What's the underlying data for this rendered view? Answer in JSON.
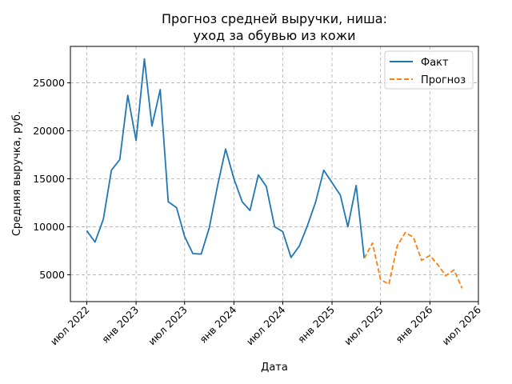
{
  "chart_data": {
    "type": "line",
    "title_lines": [
      "Прогноз средней выручки, ниша:",
      "уход за обувью из кожи"
    ],
    "xlabel": "Дата",
    "ylabel": "Средняя выручка, руб.",
    "x_range": [
      "2022-05-01",
      "2026-07-01"
    ],
    "ylim": [
      2200,
      28800
    ],
    "x_ticks": [
      {
        "date": "2022-07-01",
        "label": "июл 2022"
      },
      {
        "date": "2023-01-01",
        "label": "янв 2023"
      },
      {
        "date": "2023-07-01",
        "label": "июл 2023"
      },
      {
        "date": "2024-01-01",
        "label": "янв 2024"
      },
      {
        "date": "2024-07-01",
        "label": "июл 2024"
      },
      {
        "date": "2025-01-01",
        "label": "янв 2025"
      },
      {
        "date": "2025-07-01",
        "label": "июл 2025"
      },
      {
        "date": "2026-01-01",
        "label": "янв 2026"
      },
      {
        "date": "2026-07-01",
        "label": "июл 2026"
      }
    ],
    "y_ticks": [
      {
        "value": 5000,
        "label": "5000"
      },
      {
        "value": 10000,
        "label": "10000"
      },
      {
        "value": 15000,
        "label": "15000"
      },
      {
        "value": 20000,
        "label": "20000"
      },
      {
        "value": 25000,
        "label": "25000"
      }
    ],
    "grid": true,
    "legend_position": "top-right",
    "series": [
      {
        "name": "Факт",
        "color": "#1f77b4",
        "style": "solid",
        "points": [
          [
            "2022-07-01",
            9600
          ],
          [
            "2022-08-01",
            8400
          ],
          [
            "2022-09-01",
            10800
          ],
          [
            "2022-10-01",
            15900
          ],
          [
            "2022-11-01",
            17000
          ],
          [
            "2022-12-01",
            23700
          ],
          [
            "2023-01-01",
            19000
          ],
          [
            "2023-02-01",
            27500
          ],
          [
            "2023-03-01",
            20500
          ],
          [
            "2023-04-01",
            24300
          ],
          [
            "2023-05-01",
            12600
          ],
          [
            "2023-06-01",
            12000
          ],
          [
            "2023-07-01",
            9000
          ],
          [
            "2023-08-01",
            7200
          ],
          [
            "2023-09-01",
            7150
          ],
          [
            "2023-10-01",
            9900
          ],
          [
            "2023-11-01",
            14300
          ],
          [
            "2023-12-01",
            18100
          ],
          [
            "2024-01-01",
            15000
          ],
          [
            "2024-02-01",
            12600
          ],
          [
            "2024-03-01",
            11700
          ],
          [
            "2024-04-01",
            15400
          ],
          [
            "2024-05-01",
            14200
          ],
          [
            "2024-06-01",
            10000
          ],
          [
            "2024-07-01",
            9500
          ],
          [
            "2024-08-01",
            6800
          ],
          [
            "2024-09-01",
            8000
          ],
          [
            "2024-10-01",
            10100
          ],
          [
            "2024-11-01",
            12600
          ],
          [
            "2024-12-01",
            15900
          ],
          [
            "2025-01-01",
            14600
          ],
          [
            "2025-02-01",
            13300
          ],
          [
            "2025-03-01",
            10000
          ],
          [
            "2025-04-01",
            14300
          ],
          [
            "2025-05-01",
            6700
          ]
        ]
      },
      {
        "name": "Прогноз",
        "color": "#ff7f0e",
        "style": "dashed",
        "points": [
          [
            "2025-05-01",
            6700
          ],
          [
            "2025-06-01",
            8300
          ],
          [
            "2025-07-01",
            4500
          ],
          [
            "2025-08-01",
            4000
          ],
          [
            "2025-09-01",
            8000
          ],
          [
            "2025-10-01",
            9400
          ],
          [
            "2025-11-01",
            8900
          ],
          [
            "2025-12-01",
            6500
          ],
          [
            "2026-01-01",
            7000
          ],
          [
            "2026-02-01",
            6000
          ],
          [
            "2026-03-01",
            4900
          ],
          [
            "2026-04-01",
            5500
          ],
          [
            "2026-05-01",
            3600
          ]
        ]
      }
    ]
  }
}
